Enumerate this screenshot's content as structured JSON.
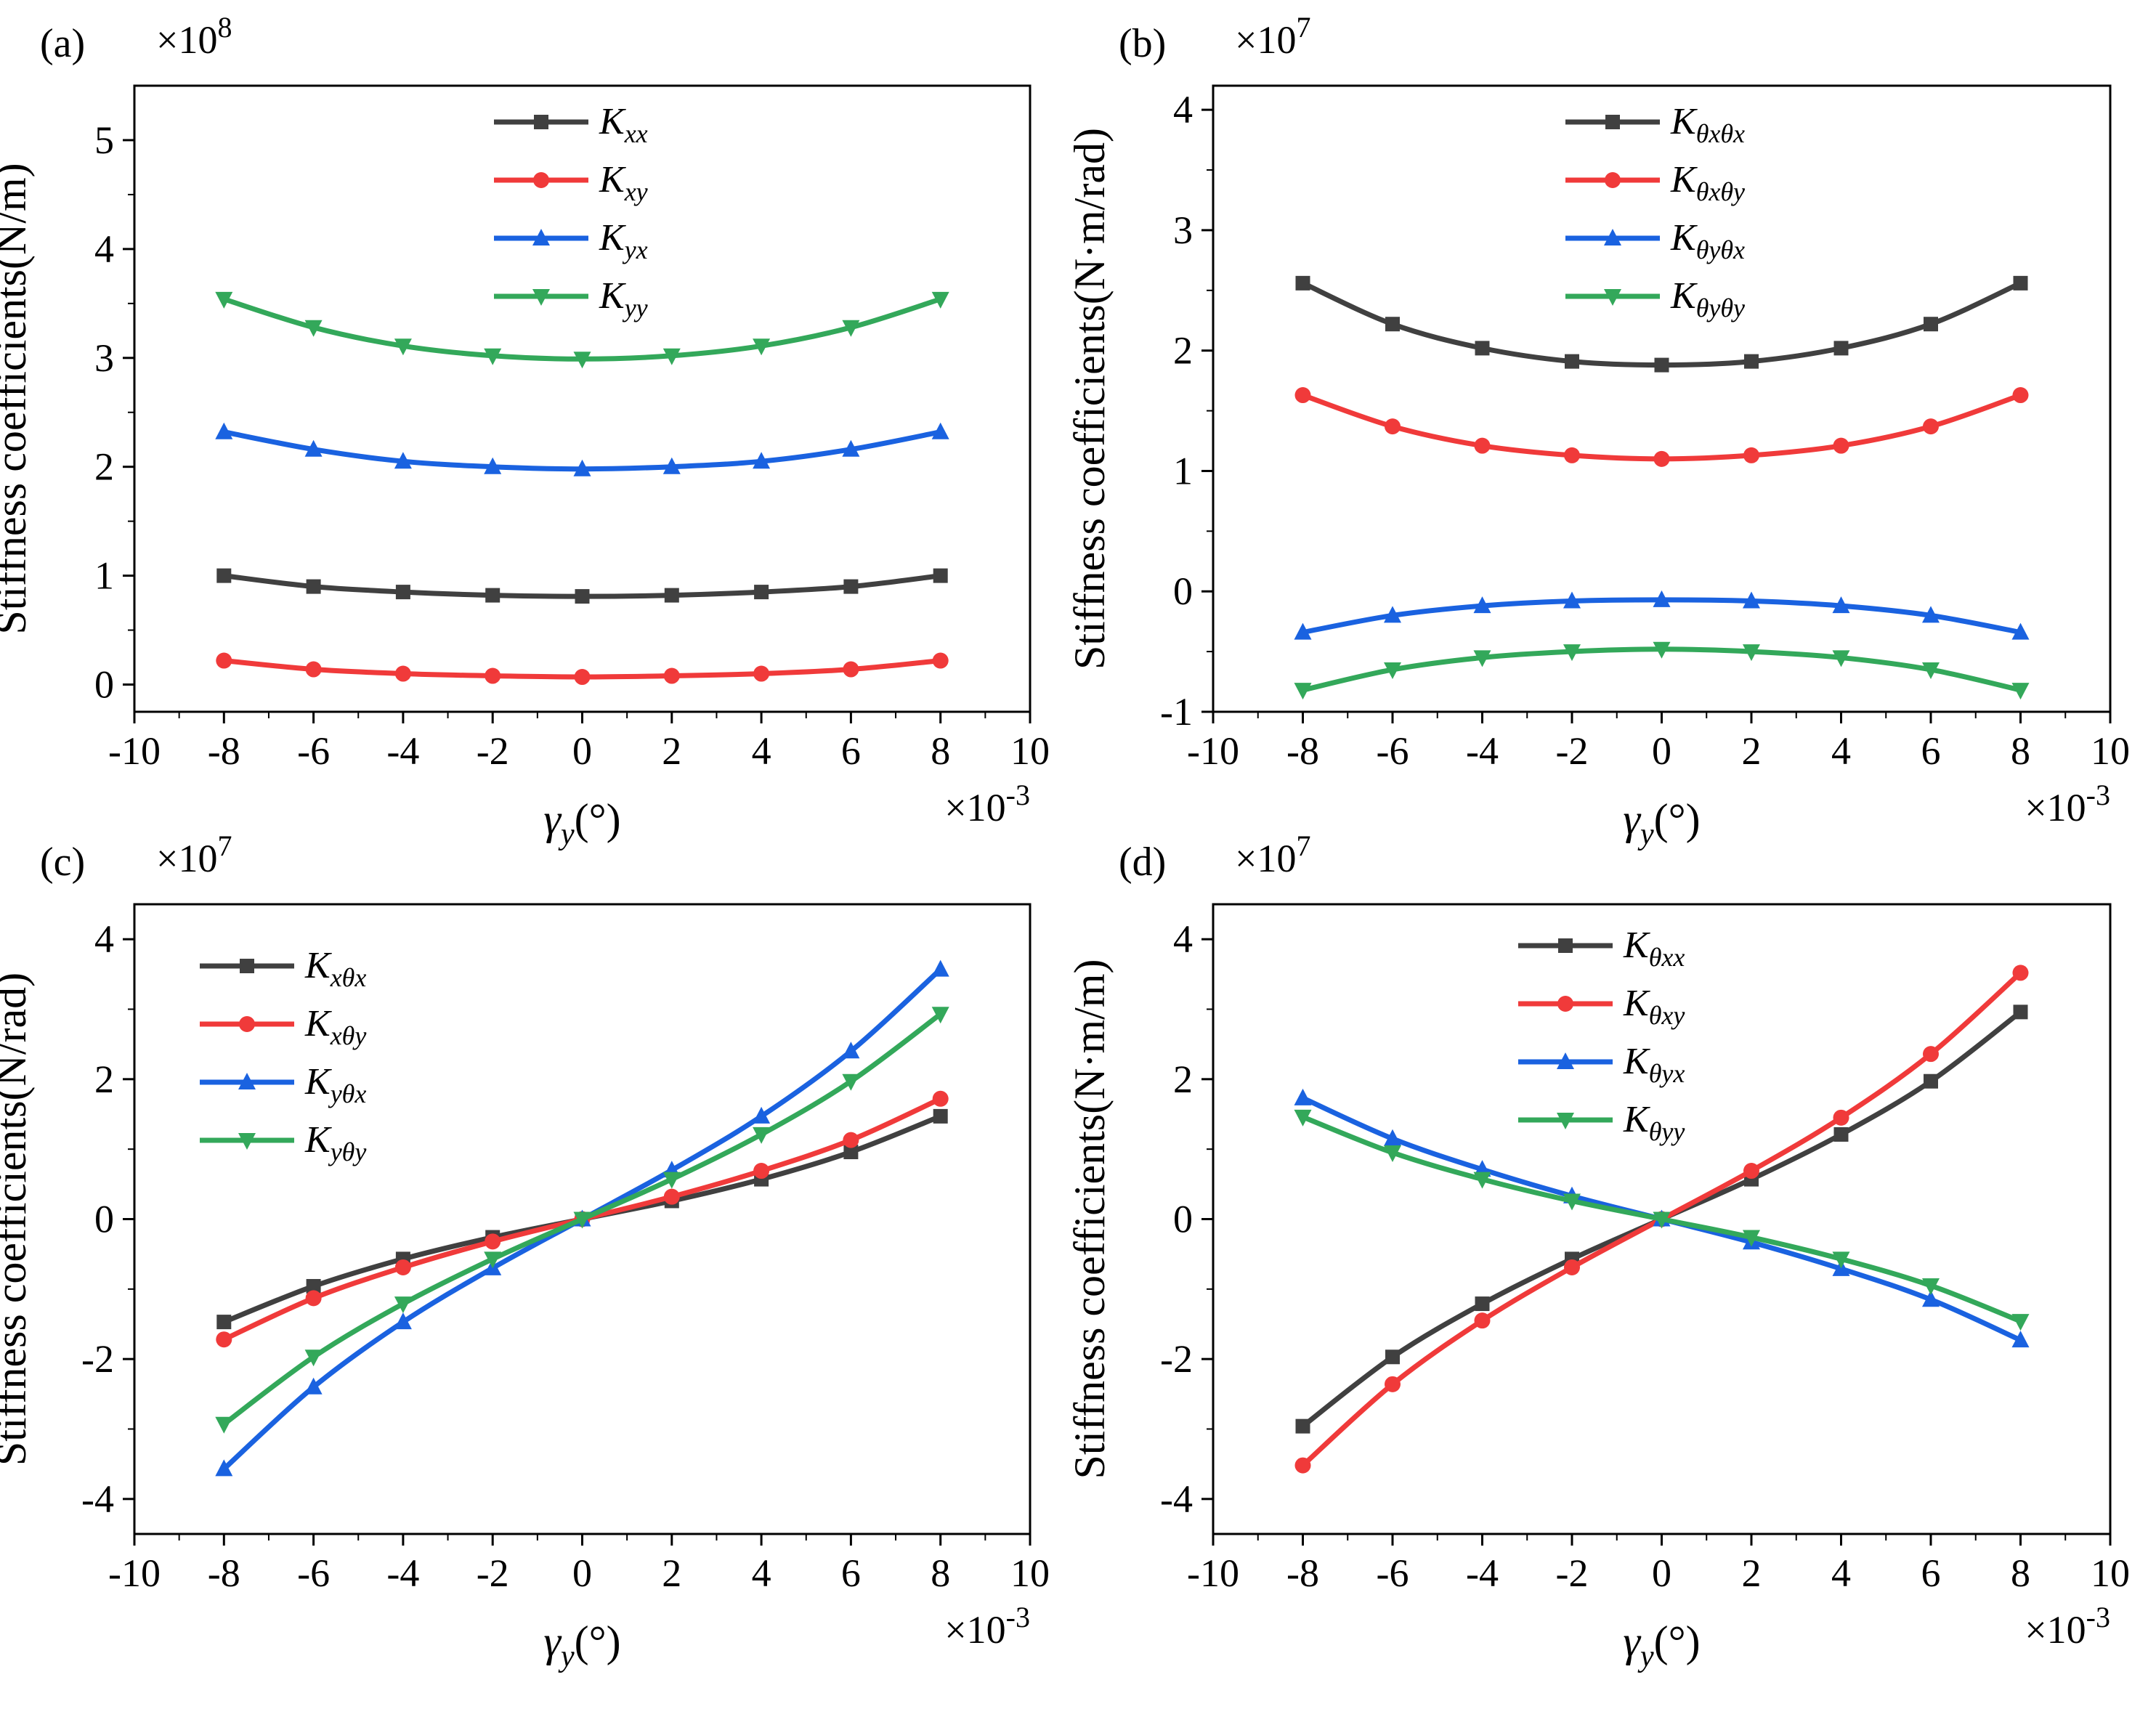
{
  "chart_data": [
    {
      "type": "line",
      "panel": "(a)",
      "multiplier": "×10^8",
      "x_multiplier": "×10^-3",
      "xlabel": "γy(°)",
      "ylabel": "Stiffness coefficients(N/m)",
      "xlim": [
        -10,
        10
      ],
      "ylim": [
        -0.25,
        5.5
      ],
      "xticks": [
        -10,
        -8,
        -6,
        -4,
        -2,
        0,
        2,
        4,
        6,
        8,
        10
      ],
      "yticks": [
        0,
        1,
        2,
        3,
        4,
        5
      ],
      "legend_position": "top-center",
      "x": [
        -8,
        -6,
        -4,
        -2,
        0,
        2,
        4,
        6,
        8
      ],
      "series": [
        {
          "name": "Kxx",
          "base": "K",
          "sub": "xx",
          "color": "#404040",
          "marker": "square",
          "values": [
            1.0,
            0.9,
            0.85,
            0.82,
            0.81,
            0.82,
            0.85,
            0.9,
            1.0
          ]
        },
        {
          "name": "Kxy",
          "base": "K",
          "sub": "xy",
          "color": "#f03a3a",
          "marker": "circle",
          "values": [
            0.22,
            0.14,
            0.1,
            0.08,
            0.07,
            0.08,
            0.1,
            0.14,
            0.22
          ]
        },
        {
          "name": "Kyx",
          "base": "K",
          "sub": "yx",
          "color": "#1a62e0",
          "marker": "triangle-up",
          "values": [
            2.32,
            2.16,
            2.05,
            2.0,
            1.98,
            2.0,
            2.05,
            2.16,
            2.32
          ]
        },
        {
          "name": "Kyy",
          "base": "K",
          "sub": "yy",
          "color": "#33a85a",
          "marker": "triangle-down",
          "values": [
            3.54,
            3.28,
            3.11,
            3.02,
            2.99,
            3.02,
            3.11,
            3.28,
            3.54
          ]
        }
      ]
    },
    {
      "type": "line",
      "panel": "(b)",
      "multiplier": "×10^7",
      "x_multiplier": "×10^-3",
      "xlabel": "γy(°)",
      "ylabel": "Stiffness coefficients(N·m/rad)",
      "xlim": [
        -10,
        10
      ],
      "ylim": [
        -1,
        4.2
      ],
      "xticks": [
        -10,
        -8,
        -6,
        -4,
        -2,
        0,
        2,
        4,
        6,
        8,
        10
      ],
      "yticks": [
        -1,
        0,
        1,
        2,
        3,
        4
      ],
      "legend_position": "top-center",
      "x": [
        -8,
        -6,
        -4,
        -2,
        0,
        2,
        4,
        6,
        8
      ],
      "series": [
        {
          "name": "Kθxθx",
          "base": "K",
          "sub": "θxθx",
          "color": "#404040",
          "marker": "square",
          "values": [
            2.56,
            2.22,
            2.02,
            1.91,
            1.88,
            1.91,
            2.02,
            2.22,
            2.56
          ]
        },
        {
          "name": "Kθxθy",
          "base": "K",
          "sub": "θxθy",
          "color": "#f03a3a",
          "marker": "circle",
          "values": [
            1.63,
            1.37,
            1.21,
            1.13,
            1.1,
            1.13,
            1.21,
            1.37,
            1.63
          ]
        },
        {
          "name": "Kθyθx",
          "base": "K",
          "sub": "θyθx",
          "color": "#1a62e0",
          "marker": "triangle-up",
          "values": [
            -0.34,
            -0.2,
            -0.12,
            -0.08,
            -0.07,
            -0.08,
            -0.12,
            -0.2,
            -0.34
          ]
        },
        {
          "name": "Kθyθy",
          "base": "K",
          "sub": "θyθy",
          "color": "#33a85a",
          "marker": "triangle-down",
          "values": [
            -0.82,
            -0.65,
            -0.55,
            -0.5,
            -0.48,
            -0.5,
            -0.55,
            -0.65,
            -0.82
          ]
        }
      ]
    },
    {
      "type": "line",
      "panel": "(c)",
      "multiplier": "×10^7",
      "x_multiplier": "×10^-3",
      "xlabel": "γy(°)",
      "ylabel": "Stiffness coefficients(N/rad)",
      "xlim": [
        -10,
        10
      ],
      "ylim": [
        -4.5,
        4.5
      ],
      "xticks": [
        -10,
        -8,
        -6,
        -4,
        -2,
        0,
        2,
        4,
        6,
        8,
        10
      ],
      "yticks": [
        -4,
        -2,
        0,
        2,
        4
      ],
      "legend_position": "top-left",
      "x": [
        -8,
        -6,
        -4,
        -2,
        0,
        2,
        4,
        6,
        8
      ],
      "series": [
        {
          "name": "Kxθx",
          "base": "K",
          "sub": "xθx",
          "color": "#404040",
          "marker": "square",
          "values": [
            -1.47,
            -0.96,
            -0.57,
            -0.26,
            0,
            0.26,
            0.57,
            0.96,
            1.47
          ]
        },
        {
          "name": "Kxθy",
          "base": "K",
          "sub": "xθy",
          "color": "#f03a3a",
          "marker": "circle",
          "values": [
            -1.72,
            -1.13,
            -0.69,
            -0.32,
            0,
            0.32,
            0.69,
            1.13,
            1.72
          ]
        },
        {
          "name": "Kyθx",
          "base": "K",
          "sub": "yθx",
          "color": "#1a62e0",
          "marker": "triangle-up",
          "values": [
            -3.57,
            -2.4,
            -1.47,
            -0.7,
            0,
            0.7,
            1.47,
            2.4,
            3.57
          ]
        },
        {
          "name": "Kyθy",
          "base": "K",
          "sub": "yθy",
          "color": "#33a85a",
          "marker": "triangle-down",
          "values": [
            -2.93,
            -1.97,
            -1.21,
            -0.57,
            0,
            0.57,
            1.21,
            1.97,
            2.93
          ]
        }
      ]
    },
    {
      "type": "line",
      "panel": "(d)",
      "multiplier": "×10^7",
      "x_multiplier": "×10^-3",
      "xlabel": "γy(°)",
      "ylabel": "Stiffness coefficients(N·m/m)",
      "xlim": [
        -10,
        10
      ],
      "ylim": [
        -4.5,
        4.5
      ],
      "xticks": [
        -10,
        -8,
        -6,
        -4,
        -2,
        0,
        2,
        4,
        6,
        8,
        10
      ],
      "yticks": [
        -4,
        -2,
        0,
        2,
        4
      ],
      "legend_position": "top-center",
      "x": [
        -8,
        -6,
        -4,
        -2,
        0,
        2,
        4,
        6,
        8
      ],
      "series": [
        {
          "name": "Kθxx",
          "base": "K",
          "sub": "θxx",
          "color": "#404040",
          "marker": "square",
          "values": [
            -2.96,
            -1.97,
            -1.21,
            -0.57,
            0,
            0.57,
            1.21,
            1.97,
            2.96
          ]
        },
        {
          "name": "Kθxy",
          "base": "K",
          "sub": "θxy",
          "color": "#f03a3a",
          "marker": "circle",
          "values": [
            -3.52,
            -2.36,
            -1.45,
            -0.69,
            0,
            0.69,
            1.45,
            2.36,
            3.52
          ]
        },
        {
          "name": "Kθyx",
          "base": "K",
          "sub": "θyx",
          "color": "#1a62e0",
          "marker": "triangle-up",
          "values": [
            1.73,
            1.15,
            0.71,
            0.33,
            0,
            -0.33,
            -0.71,
            -1.15,
            -1.73
          ]
        },
        {
          "name": "Kθyy",
          "base": "K",
          "sub": "θyy",
          "color": "#33a85a",
          "marker": "triangle-down",
          "values": [
            1.46,
            0.95,
            0.57,
            0.26,
            0,
            -0.26,
            -0.57,
            -0.95,
            -1.46
          ]
        }
      ]
    }
  ]
}
